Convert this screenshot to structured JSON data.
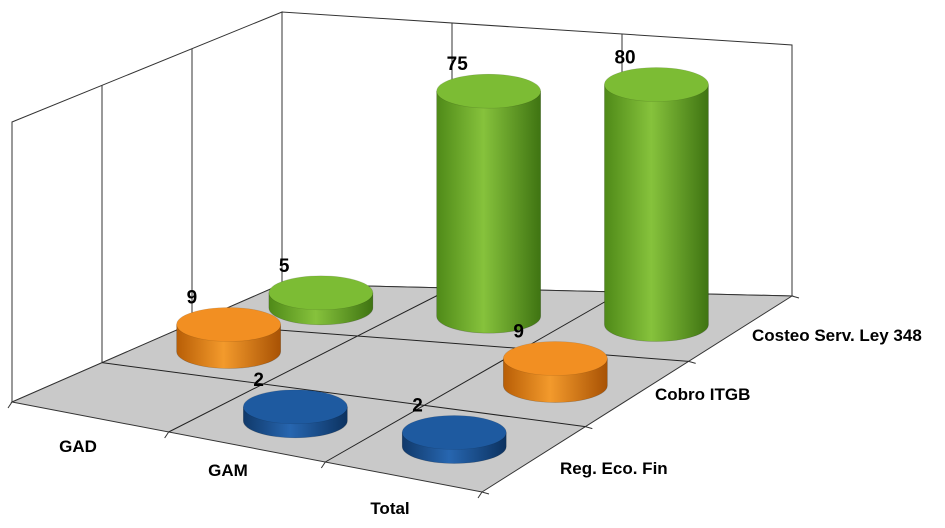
{
  "chart_data": {
    "type": "bar",
    "subtype": "3d-cylinder",
    "title": "",
    "xlabel": "",
    "ylabel": "",
    "categories": [
      "GAD",
      "GAM",
      "Total"
    ],
    "series": [
      {
        "name": "Reg. Eco. Fin",
        "color": "#1a4f8a",
        "values": [
          null,
          2,
          2
        ]
      },
      {
        "name": "Cobro ITGB",
        "color": "#e07a10",
        "values": [
          9,
          null,
          9
        ]
      },
      {
        "name": "Costeo Serv. Ley 348",
        "color": "#6aa520",
        "values": [
          5,
          75,
          80
        ]
      }
    ],
    "grid": true,
    "floor_color": "#c9c9c9"
  }
}
